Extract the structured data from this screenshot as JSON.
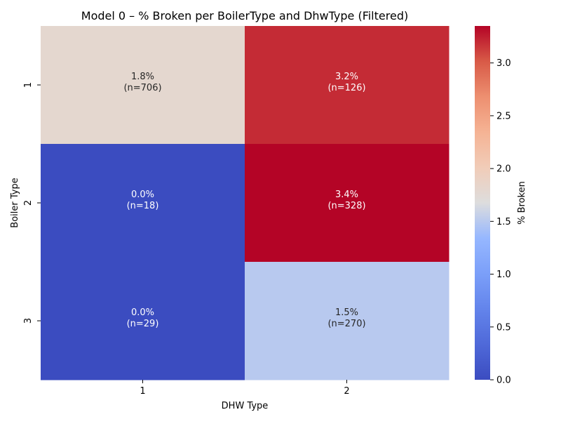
{
  "chart_data": {
    "type": "heatmap",
    "title": "Model 0 – % Broken per BoilerType and DhwType (Filtered)",
    "xlabel": "DHW Type",
    "ylabel": "Boiler Type",
    "x_categories": [
      "1",
      "2"
    ],
    "y_categories": [
      "1",
      "2",
      "3"
    ],
    "values": [
      [
        1.8,
        3.2
      ],
      [
        0.0,
        3.4
      ],
      [
        0.0,
        1.5
      ]
    ],
    "cell_labels": [
      [
        "1.8%\n(n=706)",
        "3.2%\n(n=126)"
      ],
      [
        "0.0%\n(n=18)",
        "3.4%\n(n=328)"
      ],
      [
        "0.0%\n(n=29)",
        "1.5%\n(n=270)"
      ]
    ],
    "colorbar": {
      "label": "% Broken",
      "colormap": "coolwarm",
      "vmin": 0.0,
      "vmax": 3.35,
      "ticks": [
        "0.0",
        "0.5",
        "1.0",
        "1.5",
        "2.0",
        "2.5",
        "3.0"
      ]
    },
    "colors": {
      "low": "#3b4cc0",
      "mid": "#dddddd",
      "high": "#b40426"
    }
  }
}
